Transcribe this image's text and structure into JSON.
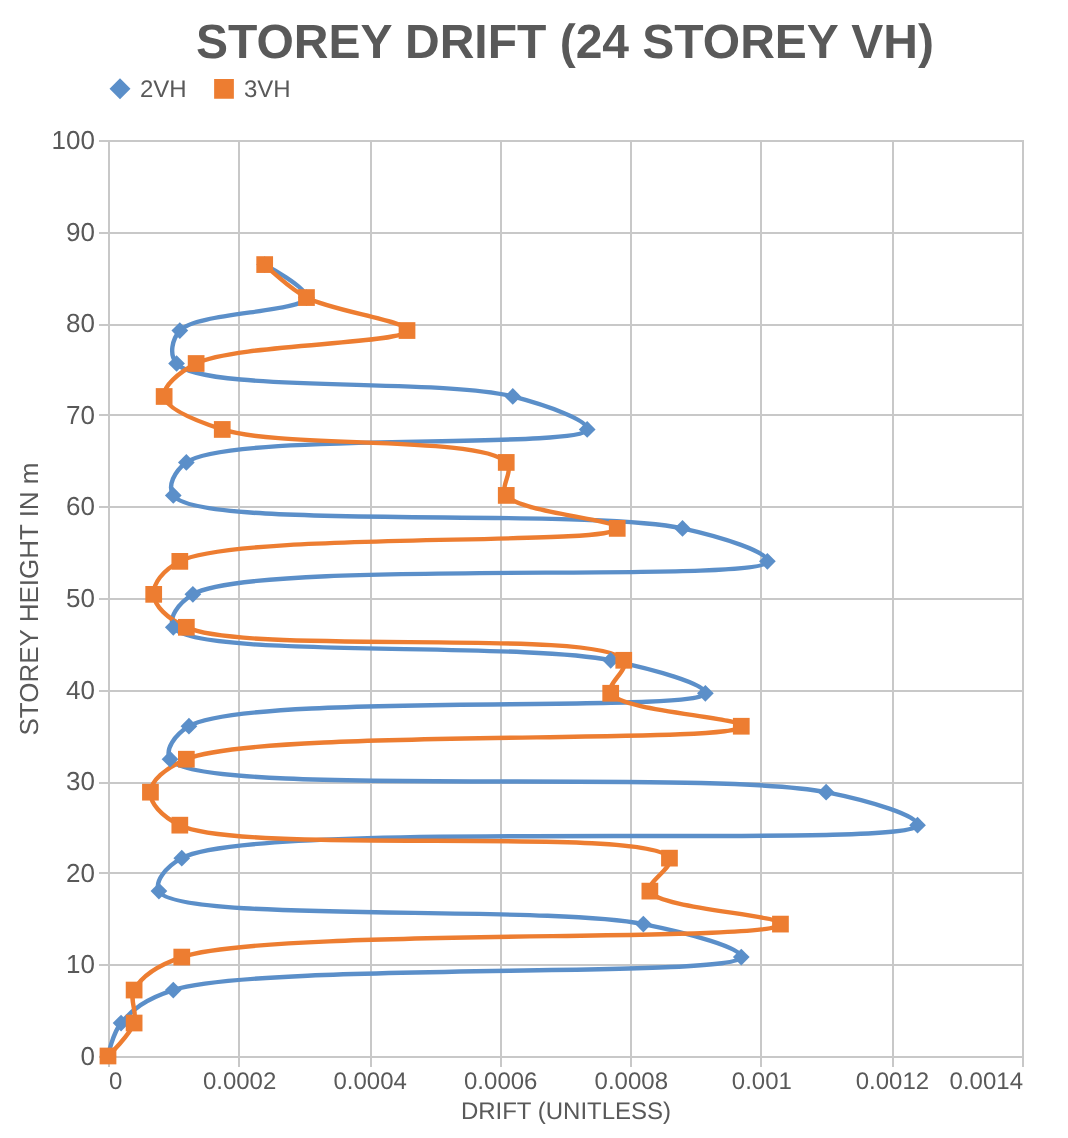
{
  "chart_data": {
    "type": "line",
    "title": "STOREY DRIFT (24 STOREY VH)",
    "xlabel": "DRIFT (UNITLESS)",
    "ylabel": "STOREY HEIGHT IN m",
    "xlim": [
      0,
      0.0014
    ],
    "xticks": [
      0,
      0.0002,
      0.0004,
      0.0006,
      0.0008,
      0.001,
      0.0012,
      0.0014
    ],
    "ylim": [
      0,
      100
    ],
    "yticks": [
      0,
      10,
      20,
      30,
      40,
      50,
      60,
      70,
      80,
      90,
      100
    ],
    "grid": true,
    "legend": "top",
    "line_style": "solid",
    "series": [
      {
        "name": "2VH",
        "color": "#5b8fc9",
        "marker": "diamond",
        "x": [
          0,
          2e-05,
          0.0001,
          0.00097,
          0.00082,
          7.8e-05,
          0.000113,
          0.00124,
          0.0011,
          9.5e-05,
          0.000124,
          0.000915,
          0.00077,
          0.0001,
          0.00013,
          0.00101,
          0.00088,
          0.0001,
          0.00012,
          0.000734,
          0.00062,
          0.000105,
          0.00011,
          0.000304,
          0.00024
        ],
        "values": [
          0,
          3.6,
          7.2,
          10.8,
          14.4,
          18,
          21.6,
          25.2,
          28.8,
          32.4,
          36,
          39.6,
          43.2,
          46.8,
          50.4,
          54,
          57.6,
          61.2,
          64.8,
          68.4,
          72,
          75.6,
          79.2,
          82.8,
          86.4
        ]
      },
      {
        "name": "3VH",
        "color": "#ed7d31",
        "marker": "square",
        "x": [
          0,
          4e-05,
          4e-05,
          0.000113,
          0.00103,
          0.00083,
          0.00086,
          0.00011,
          6.5e-05,
          0.00012,
          0.00097,
          0.00077,
          0.00079,
          0.00012,
          7e-05,
          0.00011,
          0.00078,
          0.00061,
          0.00061,
          0.000175,
          8.6e-05,
          0.000135,
          0.000458,
          0.000304,
          0.00024
        ],
        "values": [
          0,
          3.6,
          7.2,
          10.8,
          14.4,
          18,
          21.6,
          25.2,
          28.8,
          32.4,
          36,
          39.6,
          43.2,
          46.8,
          50.4,
          54,
          57.6,
          61.2,
          64.8,
          68.4,
          72,
          75.6,
          79.2,
          82.8,
          86.4
        ]
      }
    ]
  }
}
